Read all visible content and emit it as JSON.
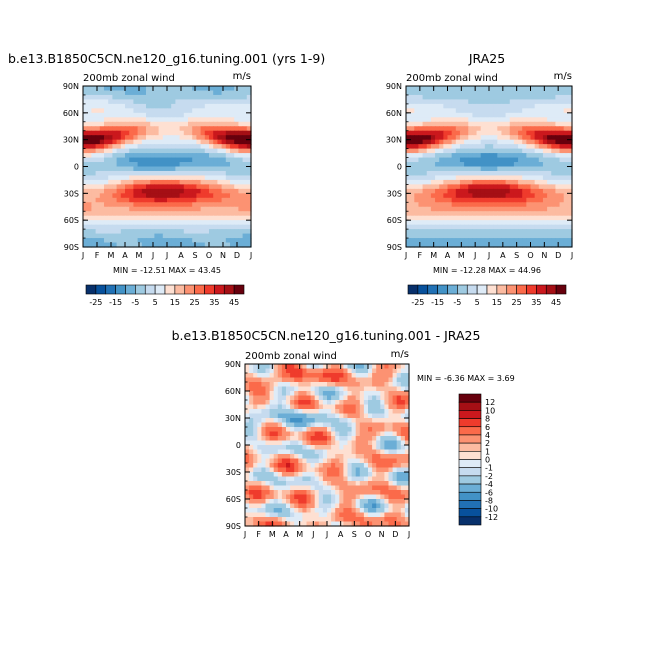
{
  "colors": {
    "top_scale": [
      "#08306b",
      "#08519c",
      "#2171b5",
      "#4292c6",
      "#6baed6",
      "#9ecae1",
      "#c6dbef",
      "#deebf7",
      "#fee0d2",
      "#fcbba1",
      "#fc9272",
      "#fb6a4a",
      "#ef3b2c",
      "#cb181d",
      "#a50f15",
      "#67000d"
    ],
    "diff_scale": [
      "#08306b",
      "#08519c",
      "#2171b5",
      "#4292c6",
      "#6baed6",
      "#9ecae1",
      "#c6dbef",
      "#deebf7",
      "#fee0d2",
      "#fcbba1",
      "#fc9272",
      "#fb6a4a",
      "#ef3b2c",
      "#cb181d",
      "#a50f15",
      "#67000d"
    ]
  },
  "chart_data": [
    {
      "type": "heatmap",
      "title": "b.e13.B1850C5CN.ne120_g16.tuning.001 (yrs 1-9)",
      "left_label": "200mb zonal wind",
      "right_label": "m/s",
      "x_tick_labels": [
        "J",
        "F",
        "M",
        "A",
        "M",
        "J",
        "J",
        "A",
        "S",
        "O",
        "N",
        "D",
        "J"
      ],
      "y_tick_labels": [
        "90N",
        "60N",
        "30N",
        "0",
        "30S",
        "60S",
        "90S"
      ],
      "min_max": "MIN = -12.51  MAX =  43.45",
      "legend_labels": [
        "-25",
        "-15",
        "-5",
        "5",
        "15",
        "25",
        "35",
        "45"
      ]
    },
    {
      "type": "heatmap",
      "title": "JRA25",
      "left_label": "200mb zonal wind",
      "right_label": "m/s",
      "x_tick_labels": [
        "J",
        "F",
        "M",
        "A",
        "M",
        "J",
        "J",
        "A",
        "S",
        "O",
        "N",
        "D",
        "J"
      ],
      "y_tick_labels": [
        "90N",
        "60N",
        "30N",
        "0",
        "30S",
        "60S",
        "90S"
      ],
      "min_max": "MIN = -12.28  MAX =  44.96",
      "legend_labels": [
        "-25",
        "-15",
        "-5",
        "5",
        "15",
        "25",
        "35",
        "45"
      ]
    },
    {
      "type": "heatmap",
      "title": "b.e13.B1850C5CN.ne120_g16.tuning.001 - JRA25",
      "left_label": "200mb zonal wind",
      "right_label": "m/s",
      "x_tick_labels": [
        "J",
        "F",
        "M",
        "A",
        "M",
        "J",
        "J",
        "A",
        "S",
        "O",
        "N",
        "D",
        "J"
      ],
      "y_tick_labels": [
        "90N",
        "60N",
        "30N",
        "0",
        "30S",
        "60S",
        "90S"
      ],
      "min_max": "MIN =  -6.36 MAX =   3.69",
      "legend_labels": [
        "12",
        "10",
        "8",
        "6",
        "4",
        "2",
        "1",
        "0",
        "-1",
        "-2",
        "-4",
        "-6",
        "-8",
        "-10",
        "-12"
      ]
    }
  ]
}
